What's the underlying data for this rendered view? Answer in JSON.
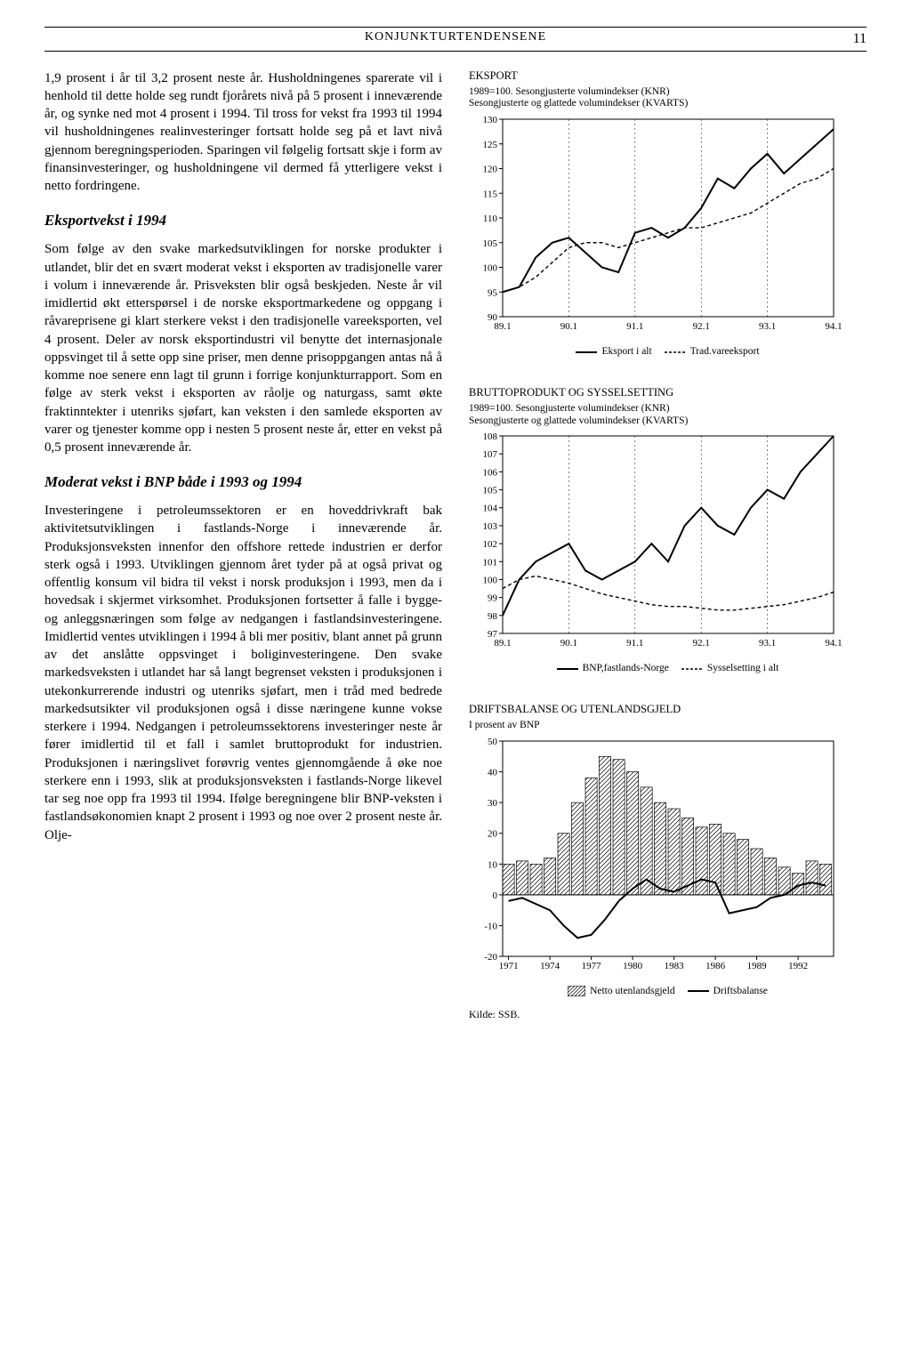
{
  "header": {
    "title": "KONJUNKTURTENDENSENE",
    "page": "11"
  },
  "left": {
    "para1": "1,9 prosent i år til 3,2 prosent neste år. Husholdningenes sparerate vil i henhold til dette holde seg rundt fjorårets nivå på 5 prosent i inneværende år, og synke ned mot 4 prosent i 1994. Til tross for vekst fra 1993 til 1994 vil husholdningenes realinvesteringer fortsatt holde seg på et lavt nivå gjennom beregningsperioden. Sparingen vil følgelig fortsatt skje i form av finansinvesteringer, og husholdningene vil dermed få ytterligere vekst i netto fordringene.",
    "sub1": "Eksportvekst i 1994",
    "para2": "Som følge av den svake markedsutviklingen for norske produkter i utlandet, blir det en svært moderat vekst i eksporten av tradisjonelle varer i volum i inneværende år. Prisveksten blir også beskjeden. Neste år vil imidlertid økt etterspørsel i de norske eksportmarkedene og oppgang i råvareprisene gi klart sterkere vekst i den tradisjonelle vareeksporten, vel 4 prosent. Deler av norsk eksportindustri vil benytte det internasjonale oppsvinget til å sette opp sine priser, men denne prisoppgangen antas nå å komme noe senere enn lagt til grunn i forrige konjunkturrapport. Som en følge av sterk vekst i eksporten av råolje og naturgass, samt økte fraktinntekter i utenriks sjøfart, kan veksten i den samlede eksporten av varer og tjenester komme opp i nesten 5 prosent neste år, etter en vekst på 0,5 prosent inneværende år.",
    "sub2": "Moderat vekst i BNP både i 1993 og 1994",
    "para3": "Investeringene i petroleumssektoren er en hoveddrivkraft bak aktivitetsutviklingen i fastlands-Norge i inneværende år. Produksjonsveksten innenfor den offshore rettede industrien er derfor sterk også i 1993. Utviklingen gjennom året tyder på at også privat og offentlig konsum vil bidra til vekst i norsk produksjon i 1993, men da i hovedsak i skjermet virksomhet. Produksjonen fortsetter å falle i bygge- og anleggsnæringen som følge av nedgangen i fastlandsinvesteringene. Imidlertid ventes utviklingen i 1994 å bli mer positiv, blant annet på grunn av det anslåtte oppsvinget i boliginvesteringene. Den svake markedsveksten i utlandet har så langt begrenset veksten i produksjonen i utekonkurrerende industri og utenriks sjøfart, men i tråd med bedrede markedsutsikter vil produksjonen også i disse næringene kunne vokse sterkere i 1994. Nedgangen i petroleumssektorens investeringer neste år fører imidlertid til et fall i samlet bruttoprodukt for industrien. Produksjonen i næringslivet forøvrig ventes gjennomgående å øke noe sterkere enn i 1993, slik at produksjonsveksten i fastlands-Norge likevel tar seg noe opp fra 1993 til 1994. Ifølge beregningene blir BNP-veksten i fastlandsøkonomien knapt 2 prosent i 1993 og noe over 2 prosent neste år. Olje-"
  },
  "chart1": {
    "title": "EKSPORT",
    "subtitle1": "1989=100. Sesongjusterte volumindekser (KNR)",
    "subtitle2": "Sesongjusterte og glattede volumindekser (KVARTS)",
    "type": "line",
    "ylim": [
      90,
      130
    ],
    "ytick_step": 5,
    "xticks": [
      "89.1",
      "90.1",
      "91.1",
      "92.1",
      "93.1",
      "94.1"
    ],
    "grid_x_positions": [
      0,
      4,
      8,
      12,
      16,
      20
    ],
    "series_solid": [
      95,
      96,
      102,
      105,
      106,
      103,
      100,
      99,
      107,
      108,
      106,
      108,
      112,
      118,
      116,
      120,
      123,
      119,
      122,
      125,
      128
    ],
    "series_dashed": [
      95,
      96,
      98,
      101,
      104,
      105,
      105,
      104,
      105,
      106,
      107,
      108,
      108,
      109,
      110,
      111,
      113,
      115,
      117,
      118,
      120
    ],
    "line_color": "#000000",
    "background": "#ffffff",
    "legend": [
      {
        "style": "solid",
        "label": "Eksport i alt"
      },
      {
        "style": "dashed",
        "label": "Trad.vareeksport"
      }
    ]
  },
  "chart2": {
    "title": "BRUTTOPRODUKT OG SYSSELSETTING",
    "subtitle1": "1989=100. Sesongjusterte volumindekser (KNR)",
    "subtitle2": "Sesongjusterte og glattede volumindekser (KVARTS)",
    "type": "line",
    "ylim": [
      97,
      108
    ],
    "ytick_step": 1,
    "xticks": [
      "89.1",
      "90.1",
      "91.1",
      "92.1",
      "93.1",
      "94.1"
    ],
    "grid_x_positions": [
      0,
      4,
      8,
      12,
      16,
      20
    ],
    "series_solid": [
      98,
      100,
      101,
      101.5,
      102,
      100.5,
      100,
      100.5,
      101,
      102,
      101,
      103,
      104,
      103,
      102.5,
      104,
      105,
      104.5,
      106,
      107,
      108
    ],
    "series_dashed": [
      99.5,
      100,
      100.2,
      100,
      99.8,
      99.5,
      99.2,
      99,
      98.8,
      98.6,
      98.5,
      98.5,
      98.4,
      98.3,
      98.3,
      98.4,
      98.5,
      98.6,
      98.8,
      99,
      99.3
    ],
    "line_color": "#000000",
    "legend": [
      {
        "style": "solid",
        "label": "BNP,fastlands-Norge"
      },
      {
        "style": "dashed",
        "label": "Sysselsetting i alt"
      }
    ]
  },
  "chart3": {
    "title": "DRIFTSBALANSE OG UTENLANDSGJELD",
    "subtitle1": "I prosent av BNP",
    "type": "bar+line",
    "ylim": [
      -20,
      50
    ],
    "ytick_step": 10,
    "xticks": [
      "1971",
      "1974",
      "1977",
      "1980",
      "1983",
      "1986",
      "1989",
      "1992"
    ],
    "years_start": 1971,
    "years_end": 1994,
    "bars": [
      10,
      11,
      10,
      12,
      20,
      30,
      38,
      45,
      44,
      40,
      35,
      30,
      28,
      25,
      22,
      23,
      20,
      18,
      15,
      12,
      9,
      7,
      11,
      10
    ],
    "line": [
      -2,
      -1,
      -3,
      -5,
      -10,
      -14,
      -13,
      -8,
      -2,
      2,
      5,
      2,
      1,
      3,
      5,
      4,
      -6,
      -5,
      -4,
      -1,
      0,
      3,
      4,
      3
    ],
    "bar_color": "#ffffff",
    "bar_hatch": true,
    "line_color": "#000000",
    "legend": [
      {
        "style": "hatchbox",
        "label": "Netto utenlandsgjeld"
      },
      {
        "style": "solid",
        "label": "Driftsbalanse"
      }
    ],
    "source": "Kilde: SSB."
  }
}
